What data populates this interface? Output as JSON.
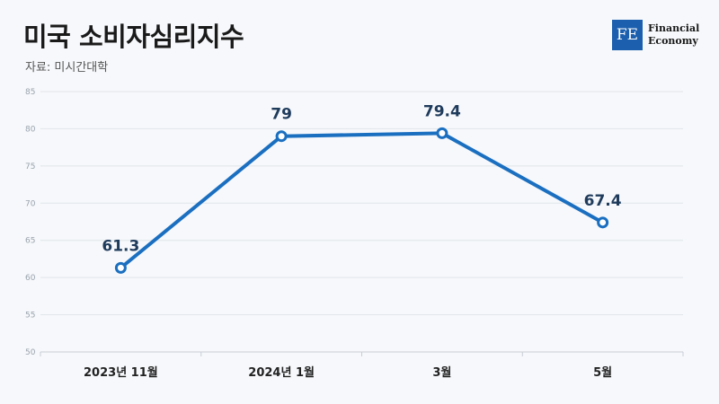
{
  "header": {
    "title": "미국 소비자심리지수",
    "source": "자료: 미시간대학"
  },
  "logo": {
    "mark": "FE",
    "line1": "Financial",
    "line2": "Economy"
  },
  "colors": {
    "line": "#1b6fc0",
    "brand": "#1b5fae"
  },
  "chart_data": {
    "type": "line",
    "categories": [
      "2023년 11월",
      "2024년 1월",
      "3월",
      "5월"
    ],
    "series": [
      {
        "values": [
          61.3,
          79,
          79.4,
          67.4
        ],
        "labels": [
          "61.3",
          "79",
          "79.4",
          "67.4"
        ]
      }
    ],
    "ylim": [
      50,
      85
    ],
    "yticks": [
      "50",
      "55",
      "60",
      "65",
      "70",
      "75",
      "80",
      "85"
    ],
    "grid": true
  }
}
